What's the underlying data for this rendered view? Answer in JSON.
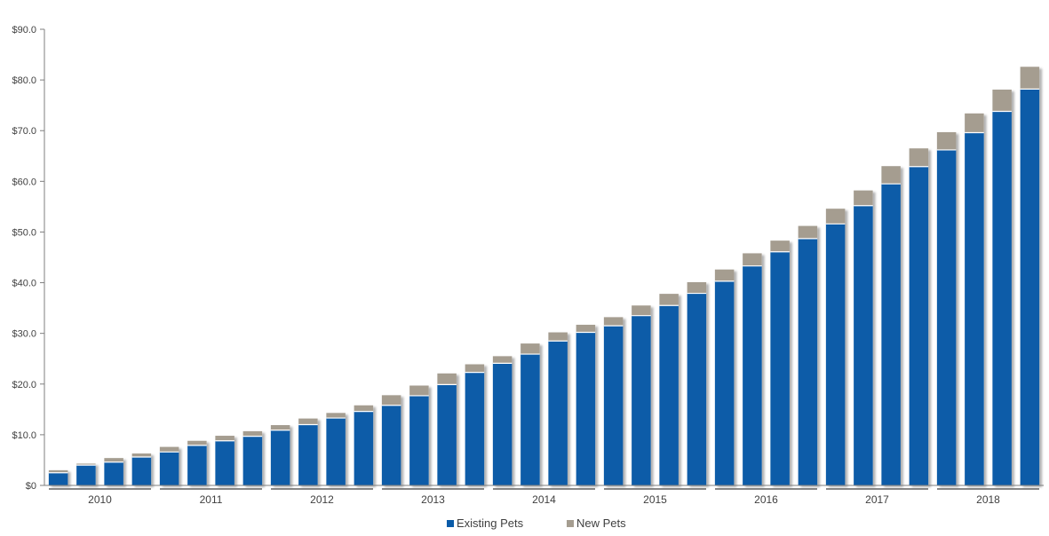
{
  "chart_data": {
    "type": "bar",
    "stacked": true,
    "ylim": [
      0,
      90
    ],
    "y_ticks": [
      "$0",
      "$10.0",
      "$20.0",
      "$30.0",
      "$40.0",
      "$50.0",
      "$60.0",
      "$70.0",
      "$80.0",
      "$90.0"
    ],
    "y_tick_values": [
      0,
      10,
      20,
      30,
      40,
      50,
      60,
      70,
      80,
      90
    ],
    "groups": [
      "2010",
      "2011",
      "2012",
      "2013",
      "2014",
      "2015",
      "2016",
      "2017",
      "2018"
    ],
    "bars_per_group": 4,
    "series": [
      {
        "name": "Existing Pets",
        "color": "#0a5ba8",
        "values": [
          2.5,
          4.0,
          4.6,
          5.6,
          6.6,
          7.9,
          8.8,
          9.7,
          10.9,
          12.0,
          13.3,
          14.6,
          15.8,
          17.7,
          19.9,
          22.3,
          24.1,
          25.9,
          28.5,
          30.2,
          31.5,
          33.5,
          35.5,
          37.9,
          40.3,
          43.3,
          46.1,
          48.7,
          51.6,
          55.2,
          59.5,
          62.9,
          66.2,
          69.6,
          73.8,
          78.2
        ]
      },
      {
        "name": "New Pets",
        "color": "#a59d90",
        "values": [
          0.5,
          0.3,
          0.8,
          0.7,
          1.0,
          0.9,
          1.0,
          1.0,
          1.0,
          1.2,
          1.0,
          1.2,
          2.0,
          2.0,
          2.2,
          1.6,
          1.4,
          2.1,
          1.7,
          1.5,
          1.7,
          2.0,
          2.3,
          2.2,
          2.3,
          2.5,
          2.2,
          2.5,
          3.0,
          3.0,
          3.5,
          3.6,
          3.5,
          3.8,
          4.3,
          4.4
        ]
      }
    ],
    "legend_position": "bottom",
    "grid": false
  }
}
